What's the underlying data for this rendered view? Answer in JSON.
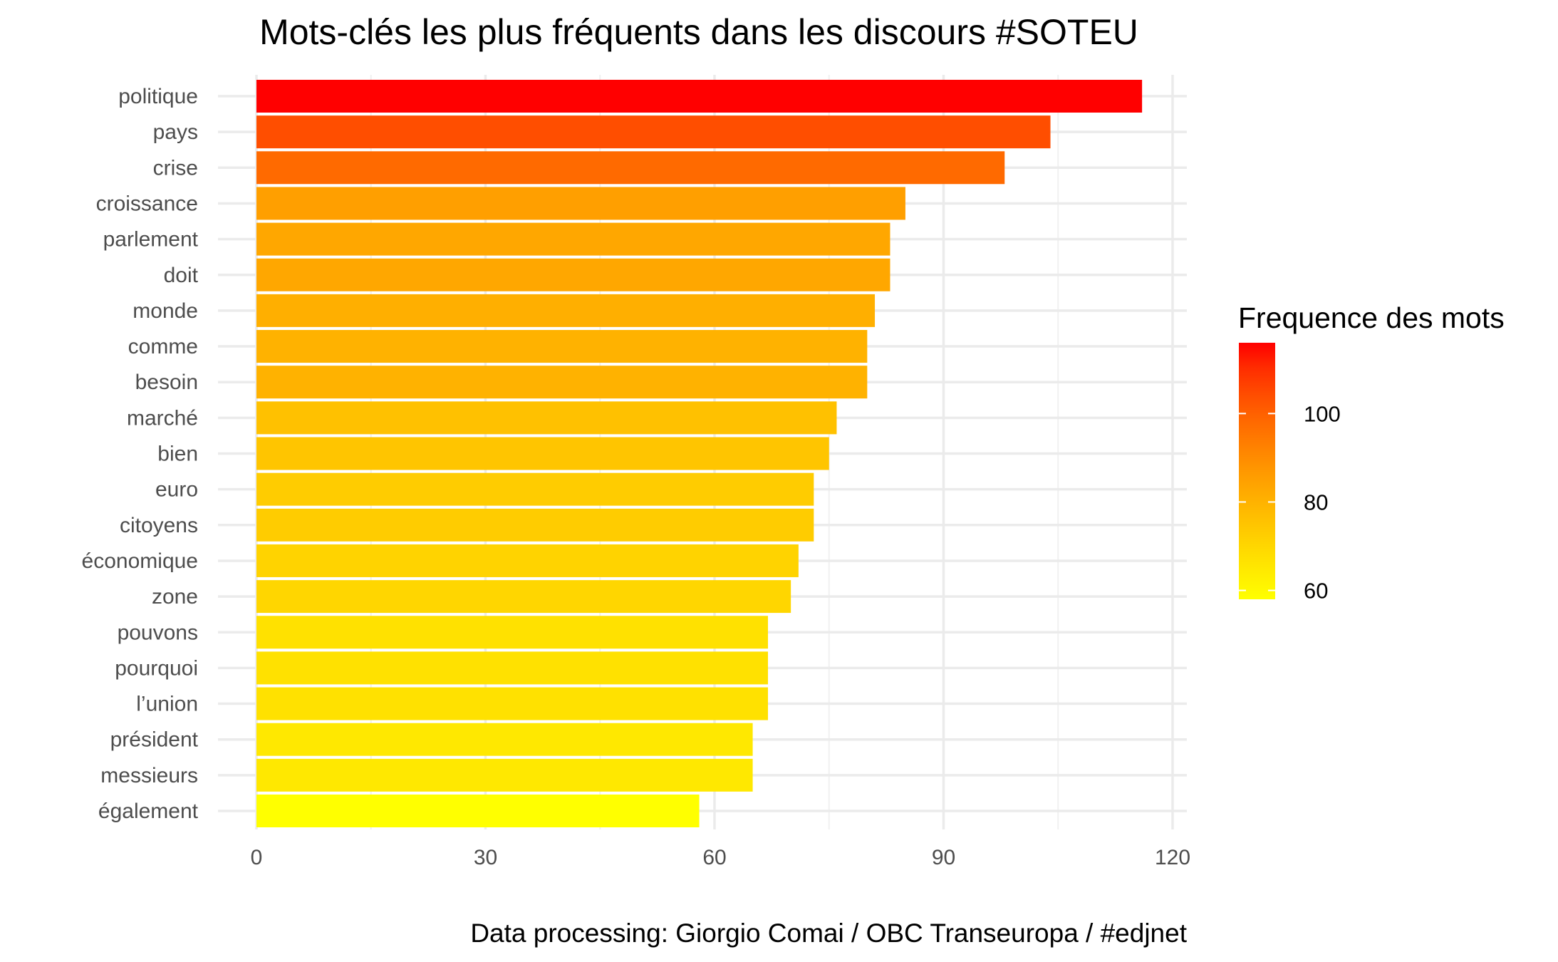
{
  "chart_data": {
    "type": "bar",
    "orientation": "horizontal",
    "title": "Mots-clés les plus fréquents dans les discours #SOTEU",
    "caption": "Data processing:  Giorgio Comai / OBC Transeuropa / #edjnet",
    "xlabel": "",
    "ylabel": "",
    "xlim": [
      0,
      120
    ],
    "x_ticks": [
      "0",
      "30",
      "60",
      "90",
      "120"
    ],
    "grid": true,
    "categories": [
      "politique",
      "pays",
      "crise",
      "croissance",
      "parlement",
      "doit",
      "monde",
      "comme",
      "besoin",
      "marché",
      "bien",
      "euro",
      "citoyens",
      "économique",
      "zone",
      "pouvons",
      "pourquoi",
      "l’union",
      "président",
      "messieurs",
      "également"
    ],
    "values": [
      116,
      104,
      98,
      85,
      83,
      83,
      81,
      80,
      80,
      76,
      75,
      73,
      73,
      71,
      70,
      67,
      67,
      67,
      65,
      65,
      58
    ],
    "legend": {
      "title": "Frequence des mots",
      "position": "right",
      "range": [
        58,
        116
      ],
      "ticks": [
        "60",
        "80",
        "100"
      ],
      "low_color": "#ffff00",
      "high_color": "#ff0000"
    }
  }
}
